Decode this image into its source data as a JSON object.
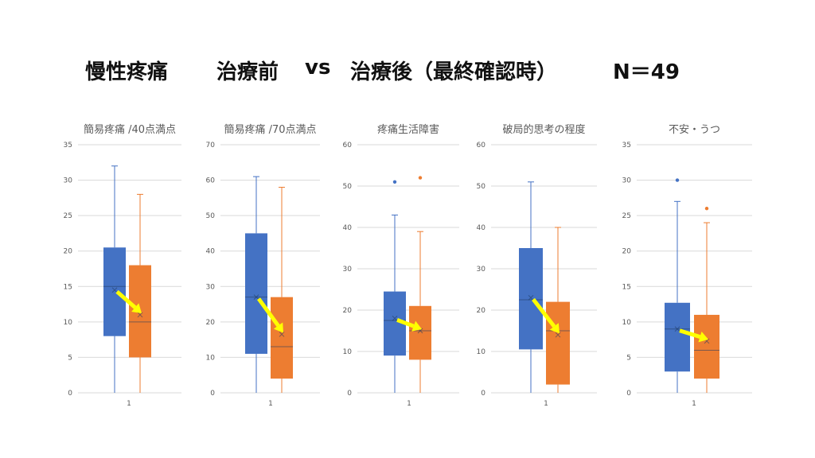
{
  "title": {
    "part1": "慢性疼痛",
    "part2": "治療前",
    "part3": "vs",
    "part4": "治療後（最終確認時）",
    "part5": "N＝49"
  },
  "colors": {
    "before": "#4472C4",
    "after": "#ED7D31",
    "arrow": "#FFFF00",
    "grid": "#D9D9D9"
  },
  "chart_data": [
    {
      "type": "boxplot",
      "title": "簡易疼痛 /40点満点",
      "ylim": [
        0,
        35
      ],
      "yticks": [
        0,
        5,
        10,
        15,
        20,
        25,
        30,
        35
      ],
      "xlabel": "1",
      "series": [
        {
          "min": 0,
          "q1": 8,
          "median": 15,
          "q3": 20.5,
          "max": 32,
          "mean": 14.5,
          "outliers": []
        },
        {
          "min": 0,
          "q1": 5,
          "median": 10,
          "q3": 18,
          "max": 28,
          "mean": 11,
          "outliers": []
        }
      ]
    },
    {
      "type": "boxplot",
      "title": "簡易疼痛 /70点満点",
      "ylim": [
        0,
        70
      ],
      "yticks": [
        0,
        10,
        20,
        30,
        40,
        50,
        60,
        70
      ],
      "xlabel": "1",
      "series": [
        {
          "min": 0,
          "q1": 11,
          "median": 27,
          "q3": 45,
          "max": 61,
          "mean": 27,
          "outliers": []
        },
        {
          "min": 0,
          "q1": 4,
          "median": 13,
          "q3": 27,
          "max": 58,
          "mean": 16.5,
          "outliers": []
        }
      ]
    },
    {
      "type": "boxplot",
      "title": "疼痛生活障害",
      "ylim": [
        0,
        60
      ],
      "yticks": [
        0,
        10,
        20,
        30,
        40,
        50,
        60
      ],
      "xlabel": "1",
      "series": [
        {
          "min": 0,
          "q1": 9,
          "median": 17.5,
          "q3": 24.5,
          "max": 43,
          "mean": 18,
          "outliers": [
            51
          ]
        },
        {
          "min": 0,
          "q1": 8,
          "median": 15,
          "q3": 21,
          "max": 39,
          "mean": 15,
          "outliers": [
            52
          ]
        }
      ]
    },
    {
      "type": "boxplot",
      "title": "破局的思考の程度",
      "ylim": [
        0,
        60
      ],
      "yticks": [
        0,
        10,
        20,
        30,
        40,
        50,
        60
      ],
      "xlabel": "1",
      "series": [
        {
          "min": 0,
          "q1": 10.5,
          "median": 22.5,
          "q3": 35,
          "max": 51,
          "mean": 23,
          "outliers": []
        },
        {
          "min": 0,
          "q1": 2,
          "median": 15,
          "q3": 22,
          "max": 40,
          "mean": 14,
          "outliers": []
        }
      ]
    },
    {
      "type": "boxplot",
      "title": "不安・うつ",
      "ylim": [
        0,
        35
      ],
      "yticks": [
        0,
        5,
        10,
        15,
        20,
        25,
        30,
        35
      ],
      "xlabel": "1",
      "series": [
        {
          "min": 0,
          "q1": 3,
          "median": 9,
          "q3": 12.7,
          "max": 27,
          "mean": 9,
          "outliers": [
            30
          ]
        },
        {
          "min": 0,
          "q1": 2,
          "median": 6,
          "q3": 11,
          "max": 24,
          "mean": 7.3,
          "outliers": [
            26
          ]
        }
      ]
    }
  ]
}
